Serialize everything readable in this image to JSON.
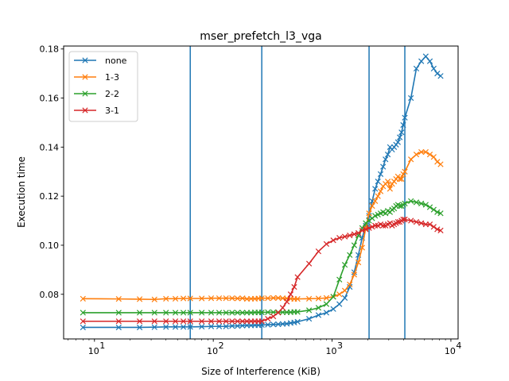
{
  "chart_data": {
    "type": "line",
    "title": "mser_prefetch_l3_vga",
    "xlabel": "Size of Interference (KiB)",
    "ylabel": "Execution time",
    "xscale": "log",
    "xlim": [
      5.5,
      11500
    ],
    "ylim": [
      0.0618,
      0.1812
    ],
    "xticks": [
      10,
      100,
      1000,
      10000
    ],
    "xtick_labels": [
      "10",
      "10",
      "10",
      "10"
    ],
    "xtick_exponents": [
      "1",
      "2",
      "3",
      "4"
    ],
    "yticks": [
      0.08,
      0.1,
      0.12,
      0.14,
      0.16,
      0.18
    ],
    "ytick_labels": [
      "0.08",
      "0.10",
      "0.12",
      "0.14",
      "0.16",
      "0.18"
    ],
    "grid": false,
    "legend_position": "top-left",
    "vlines": {
      "color": "#1f77b4",
      "x": [
        64,
        256,
        2048,
        4096
      ]
    },
    "series": [
      {
        "name": "none",
        "color": "#1f77b4",
        "marker": "x",
        "x": [
          8,
          16,
          24,
          32,
          40,
          48,
          56,
          64,
          80,
          96,
          112,
          128,
          144,
          160,
          176,
          192,
          208,
          224,
          240,
          256,
          288,
          320,
          352,
          384,
          416,
          448,
          480,
          512,
          640,
          768,
          896,
          1024,
          1152,
          1280,
          1408,
          1536,
          1664,
          1792,
          1920,
          2048,
          2176,
          2304,
          2432,
          2560,
          2688,
          2816,
          2944,
          3072,
          3200,
          3328,
          3456,
          3584,
          3712,
          3840,
          3968,
          4096,
          4608,
          5120,
          5632,
          6144,
          6656,
          7168,
          7680,
          8192
        ],
        "y": [
          0.0665,
          0.0665,
          0.0665,
          0.0666,
          0.0667,
          0.0667,
          0.0667,
          0.0667,
          0.0668,
          0.0669,
          0.0669,
          0.0669,
          0.0671,
          0.0671,
          0.0672,
          0.0673,
          0.0673,
          0.0674,
          0.0674,
          0.0675,
          0.0676,
          0.0677,
          0.0678,
          0.0679,
          0.068,
          0.0683,
          0.0685,
          0.0688,
          0.07,
          0.0715,
          0.0725,
          0.074,
          0.076,
          0.0785,
          0.083,
          0.089,
          0.096,
          0.103,
          0.108,
          0.112,
          0.118,
          0.123,
          0.126,
          0.129,
          0.132,
          0.135,
          0.137,
          0.14,
          0.139,
          0.14,
          0.141,
          0.142,
          0.144,
          0.146,
          0.149,
          0.152,
          0.16,
          0.172,
          0.175,
          0.177,
          0.175,
          0.172,
          0.17,
          0.169
        ]
      },
      {
        "name": "1-3",
        "color": "#ff7f0e",
        "marker": "x",
        "x": [
          8,
          16,
          24,
          32,
          40,
          48,
          56,
          64,
          80,
          96,
          112,
          128,
          144,
          160,
          176,
          192,
          208,
          224,
          240,
          256,
          288,
          320,
          352,
          384,
          416,
          448,
          480,
          512,
          640,
          768,
          896,
          1024,
          1152,
          1280,
          1408,
          1536,
          1664,
          1792,
          1920,
          2048,
          2176,
          2304,
          2432,
          2560,
          2688,
          2816,
          2944,
          3072,
          3200,
          3328,
          3456,
          3584,
          3712,
          3840,
          3968,
          4096,
          4608,
          5120,
          5632,
          6144,
          6656,
          7168,
          7680,
          8192
        ],
        "y": [
          0.0782,
          0.0781,
          0.078,
          0.0779,
          0.0782,
          0.0782,
          0.0783,
          0.0783,
          0.0783,
          0.0784,
          0.0784,
          0.0784,
          0.0784,
          0.0783,
          0.0784,
          0.0781,
          0.0782,
          0.0782,
          0.0783,
          0.0784,
          0.0784,
          0.0785,
          0.0785,
          0.0784,
          0.0783,
          0.0782,
          0.0781,
          0.0781,
          0.0782,
          0.0783,
          0.0785,
          0.079,
          0.08,
          0.0815,
          0.084,
          0.088,
          0.093,
          0.099,
          0.107,
          0.113,
          0.116,
          0.118,
          0.12,
          0.122,
          0.124,
          0.125,
          0.126,
          0.123,
          0.125,
          0.126,
          0.127,
          0.128,
          0.127,
          0.127,
          0.129,
          0.13,
          0.135,
          0.137,
          0.138,
          0.138,
          0.137,
          0.136,
          0.134,
          0.133
        ]
      },
      {
        "name": "2-2",
        "color": "#2ca02c",
        "marker": "x",
        "x": [
          8,
          16,
          24,
          32,
          40,
          48,
          56,
          64,
          80,
          96,
          112,
          128,
          144,
          160,
          176,
          192,
          208,
          224,
          240,
          256,
          288,
          320,
          352,
          384,
          416,
          448,
          480,
          512,
          640,
          768,
          896,
          1024,
          1152,
          1280,
          1408,
          1536,
          1664,
          1792,
          1920,
          2048,
          2176,
          2304,
          2432,
          2560,
          2688,
          2816,
          2944,
          3072,
          3200,
          3328,
          3456,
          3584,
          3712,
          3840,
          3968,
          4096,
          4608,
          5120,
          5632,
          6144,
          6656,
          7168,
          7680,
          8192
        ],
        "y": [
          0.0725,
          0.0725,
          0.0725,
          0.0725,
          0.0725,
          0.0725,
          0.0725,
          0.0725,
          0.0725,
          0.0725,
          0.0725,
          0.0725,
          0.0725,
          0.0725,
          0.0725,
          0.0725,
          0.0725,
          0.0726,
          0.0726,
          0.0726,
          0.0727,
          0.0727,
          0.0727,
          0.0727,
          0.0727,
          0.0727,
          0.0728,
          0.0728,
          0.0735,
          0.0745,
          0.076,
          0.079,
          0.086,
          0.092,
          0.096,
          0.1,
          0.104,
          0.107,
          0.109,
          0.11,
          0.111,
          0.112,
          0.1125,
          0.113,
          0.1135,
          0.113,
          0.114,
          0.1135,
          0.1145,
          0.115,
          0.116,
          0.1165,
          0.116,
          0.116,
          0.1165,
          0.117,
          0.118,
          0.1175,
          0.117,
          0.1165,
          0.1155,
          0.1145,
          0.1135,
          0.113
        ]
      },
      {
        "name": "3-1",
        "color": "#d62728",
        "marker": "x",
        "x": [
          8,
          16,
          24,
          32,
          40,
          48,
          56,
          64,
          80,
          96,
          112,
          128,
          144,
          160,
          176,
          192,
          208,
          224,
          240,
          256,
          288,
          320,
          352,
          384,
          416,
          448,
          480,
          512,
          640,
          768,
          896,
          1024,
          1152,
          1280,
          1408,
          1536,
          1664,
          1792,
          1920,
          2048,
          2176,
          2304,
          2432,
          2560,
          2688,
          2816,
          2944,
          3072,
          3200,
          3328,
          3456,
          3584,
          3712,
          3840,
          3968,
          4096,
          4608,
          5120,
          5632,
          6144,
          6656,
          7168,
          7680,
          8192
        ],
        "y": [
          0.069,
          0.069,
          0.069,
          0.069,
          0.069,
          0.069,
          0.069,
          0.069,
          0.069,
          0.069,
          0.069,
          0.069,
          0.069,
          0.069,
          0.069,
          0.069,
          0.069,
          0.069,
          0.069,
          0.069,
          0.07,
          0.071,
          0.0725,
          0.0745,
          0.077,
          0.08,
          0.083,
          0.087,
          0.0925,
          0.0975,
          0.1005,
          0.102,
          0.103,
          0.1035,
          0.104,
          0.1045,
          0.105,
          0.106,
          0.1065,
          0.107,
          0.1075,
          0.108,
          0.108,
          0.1085,
          0.108,
          0.108,
          0.1085,
          0.109,
          0.108,
          0.1085,
          0.109,
          0.1095,
          0.1095,
          0.11,
          0.1105,
          0.1105,
          0.11,
          0.1095,
          0.109,
          0.1085,
          0.1085,
          0.1075,
          0.1065,
          0.106
        ]
      }
    ]
  }
}
